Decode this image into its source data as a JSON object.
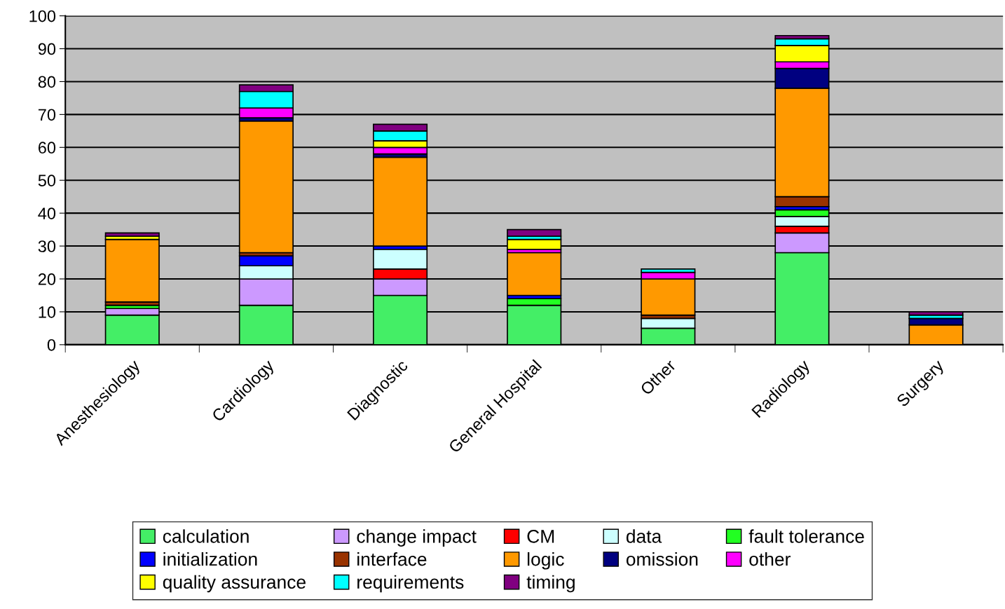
{
  "chart_data": {
    "type": "bar",
    "stacked": true,
    "categories": [
      "Anesthesiology",
      "Cardiology",
      "Diagnostic",
      "General Hospital",
      "Other",
      "Radiology",
      "Surgery"
    ],
    "ylim": [
      0,
      100
    ],
    "yticks": [
      0,
      10,
      20,
      30,
      40,
      50,
      60,
      70,
      80,
      90,
      100
    ],
    "grid": "y",
    "legend": "bottom",
    "series": [
      {
        "name": "calculation",
        "color": "#44ee66",
        "values": [
          9,
          12,
          15,
          12,
          5,
          28,
          0
        ]
      },
      {
        "name": "change impact",
        "color": "#cc99ff",
        "values": [
          2,
          8,
          5,
          0,
          0,
          6,
          0
        ]
      },
      {
        "name": "CM",
        "color": "#ff0000",
        "values": [
          0,
          0,
          3,
          0,
          0,
          2,
          0
        ]
      },
      {
        "name": "data",
        "color": "#ccffff",
        "values": [
          0,
          4,
          6,
          0,
          3,
          3,
          0
        ]
      },
      {
        "name": "fault tolerance",
        "color": "#22ff22",
        "values": [
          1,
          0,
          0,
          2,
          0,
          2,
          0
        ]
      },
      {
        "name": "initialization",
        "color": "#0000ff",
        "values": [
          0,
          3,
          1,
          1,
          0,
          1,
          0
        ]
      },
      {
        "name": "interface",
        "color": "#993300",
        "values": [
          1,
          1,
          0,
          0,
          1,
          3,
          0
        ]
      },
      {
        "name": "logic",
        "color": "#ff9900",
        "values": [
          19,
          40,
          27,
          13,
          11,
          33,
          6
        ]
      },
      {
        "name": "omission",
        "color": "#000080",
        "values": [
          0,
          1,
          1,
          0,
          0,
          6,
          2
        ]
      },
      {
        "name": "other",
        "color": "#ff00ff",
        "values": [
          0,
          3,
          2,
          1,
          2,
          2,
          0
        ]
      },
      {
        "name": "quality assurance",
        "color": "#ffff00",
        "values": [
          1,
          0,
          2,
          3,
          0,
          5,
          0
        ]
      },
      {
        "name": "requirements",
        "color": "#00ffff",
        "values": [
          0,
          5,
          3,
          1,
          1,
          2,
          1
        ]
      },
      {
        "name": "timing",
        "color": "#800080",
        "values": [
          1,
          2,
          2,
          2,
          0,
          1,
          1
        ]
      }
    ]
  }
}
